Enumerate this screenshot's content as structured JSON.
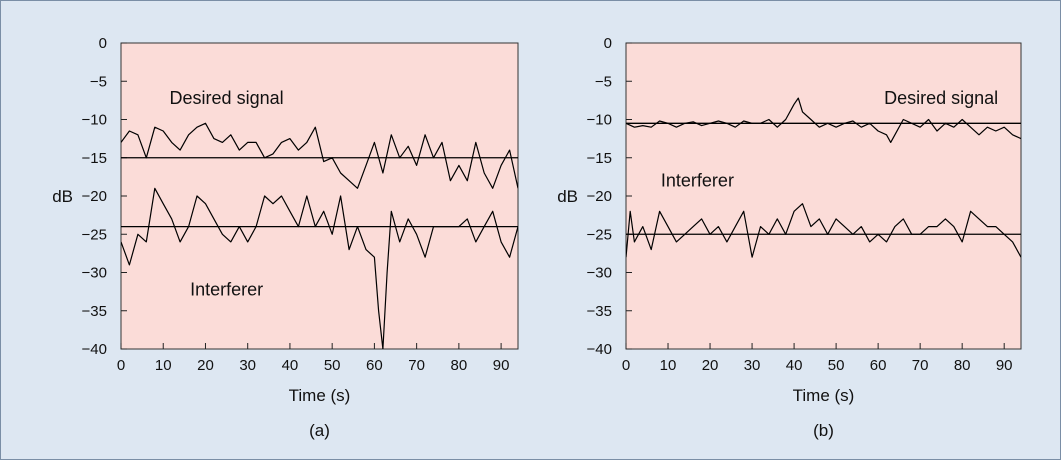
{
  "figure": {
    "background": "#dde7f2",
    "plot_background": "#fbdcd8",
    "line_color": "#000000"
  },
  "chart_data": [
    {
      "type": "line",
      "caption": "(a)",
      "xlabel": "Time (s)",
      "ylabel": "dB",
      "xlim": [
        0,
        94
      ],
      "ylim": [
        -40,
        0
      ],
      "xticks": [
        0,
        10,
        20,
        30,
        40,
        50,
        60,
        70,
        80,
        90
      ],
      "yticks": [
        0,
        -5,
        -10,
        -15,
        -20,
        -25,
        -30,
        -35,
        -40
      ],
      "annotations": [
        {
          "text": "Desired signal",
          "x": 25,
          "y": -7.2
        },
        {
          "text": "Interferer",
          "x": 25,
          "y": -32.2
        }
      ],
      "reference_lines": [
        -15,
        -24
      ],
      "series": [
        {
          "role": "desired",
          "x": [
            0,
            2,
            4,
            6,
            8,
            10,
            12,
            14,
            16,
            18,
            20,
            22,
            24,
            26,
            28,
            30,
            32,
            34,
            36,
            38,
            40,
            42,
            44,
            46,
            48,
            50,
            52,
            54,
            56,
            58,
            60,
            62,
            64,
            66,
            68,
            70,
            72,
            74,
            76,
            78,
            80,
            82,
            84,
            86,
            88,
            90,
            92,
            94
          ],
          "y": [
            -13,
            -11.5,
            -12,
            -15,
            -11,
            -11.5,
            -13,
            -14,
            -12,
            -11,
            -10.5,
            -12.5,
            -13,
            -12,
            -14,
            -13,
            -13,
            -15,
            -14.5,
            -13,
            -12.5,
            -14,
            -13,
            -11,
            -15.5,
            -15,
            -17,
            -18,
            -19,
            -16,
            -13,
            -17,
            -12,
            -15,
            -13.5,
            -16,
            -12,
            -15,
            -13,
            -18,
            -16,
            -18,
            -13,
            -17,
            -19,
            -16,
            -14,
            -19
          ]
        },
        {
          "role": "interferer",
          "x": [
            0,
            2,
            4,
            6,
            8,
            10,
            12,
            14,
            16,
            18,
            20,
            22,
            24,
            26,
            28,
            30,
            32,
            34,
            36,
            38,
            40,
            42,
            44,
            46,
            48,
            50,
            52,
            54,
            56,
            58,
            60,
            61,
            62,
            63,
            64,
            66,
            68,
            70,
            72,
            74,
            76,
            78,
            80,
            82,
            84,
            86,
            88,
            90,
            92,
            94
          ],
          "y": [
            -26,
            -29,
            -25,
            -26,
            -19,
            -21,
            -23,
            -26,
            -24,
            -20,
            -21,
            -23,
            -25,
            -26,
            -24,
            -26,
            -24,
            -20,
            -21,
            -20,
            -22,
            -24,
            -20,
            -24,
            -22,
            -25,
            -20,
            -27,
            -24,
            -27,
            -28,
            -35,
            -40,
            -30,
            -22,
            -26,
            -23,
            -25,
            -28,
            -24,
            -24,
            -24,
            -24,
            -23,
            -26,
            -24,
            -22,
            -26,
            -28,
            -24
          ]
        }
      ]
    },
    {
      "type": "line",
      "caption": "(b)",
      "xlabel": "Time (s)",
      "ylabel": "dB",
      "xlim": [
        0,
        94
      ],
      "ylim": [
        -40,
        0
      ],
      "xticks": [
        0,
        10,
        20,
        30,
        40,
        50,
        60,
        70,
        80,
        90
      ],
      "yticks": [
        0,
        -5,
        -10,
        -15,
        -20,
        -25,
        -30,
        -35,
        -40
      ],
      "annotations": [
        {
          "text": "Desired signal",
          "x": 75,
          "y": -7.2
        },
        {
          "text": "Interferer",
          "x": 17,
          "y": -18
        }
      ],
      "reference_lines": [
        -10.5,
        -25
      ],
      "series": [
        {
          "role": "desired",
          "x": [
            0,
            2,
            4,
            6,
            8,
            10,
            12,
            14,
            16,
            18,
            20,
            22,
            24,
            26,
            28,
            30,
            32,
            34,
            36,
            38,
            40,
            41,
            42,
            44,
            46,
            48,
            50,
            52,
            54,
            56,
            58,
            60,
            62,
            63,
            64,
            66,
            68,
            70,
            72,
            74,
            76,
            78,
            80,
            82,
            84,
            86,
            88,
            90,
            92,
            94
          ],
          "y": [
            -10.5,
            -11,
            -10.8,
            -11,
            -10.2,
            -10.5,
            -11,
            -10.5,
            -10.3,
            -10.8,
            -10.5,
            -10.2,
            -10.5,
            -11,
            -10.2,
            -10.5,
            -10.5,
            -10,
            -11,
            -10,
            -8,
            -7.2,
            -9,
            -10,
            -11,
            -10.5,
            -11,
            -10.5,
            -10.2,
            -11,
            -10.5,
            -11.5,
            -12,
            -13,
            -12,
            -10,
            -10.5,
            -11,
            -10,
            -11.5,
            -10.5,
            -11,
            -10,
            -11,
            -12,
            -11,
            -11.5,
            -11,
            -12,
            -12.5
          ]
        },
        {
          "role": "interferer",
          "x": [
            0,
            1,
            2,
            4,
            6,
            8,
            10,
            12,
            14,
            16,
            18,
            20,
            22,
            24,
            26,
            28,
            30,
            32,
            34,
            36,
            38,
            40,
            42,
            44,
            46,
            48,
            50,
            52,
            54,
            56,
            58,
            60,
            62,
            64,
            66,
            68,
            70,
            72,
            74,
            76,
            78,
            80,
            82,
            84,
            86,
            88,
            90,
            92,
            94
          ],
          "y": [
            -28,
            -22,
            -26,
            -24,
            -27,
            -22,
            -24,
            -26,
            -25,
            -24,
            -23,
            -25,
            -24,
            -26,
            -24,
            -22,
            -28,
            -24,
            -25,
            -23,
            -25,
            -22,
            -21,
            -24,
            -23,
            -25,
            -23,
            -24,
            -25,
            -24,
            -26,
            -25,
            -26,
            -24,
            -23,
            -25,
            -25,
            -24,
            -24,
            -23,
            -24,
            -26,
            -22,
            -23,
            -24,
            -24,
            -25,
            -26,
            -28
          ]
        }
      ]
    }
  ]
}
